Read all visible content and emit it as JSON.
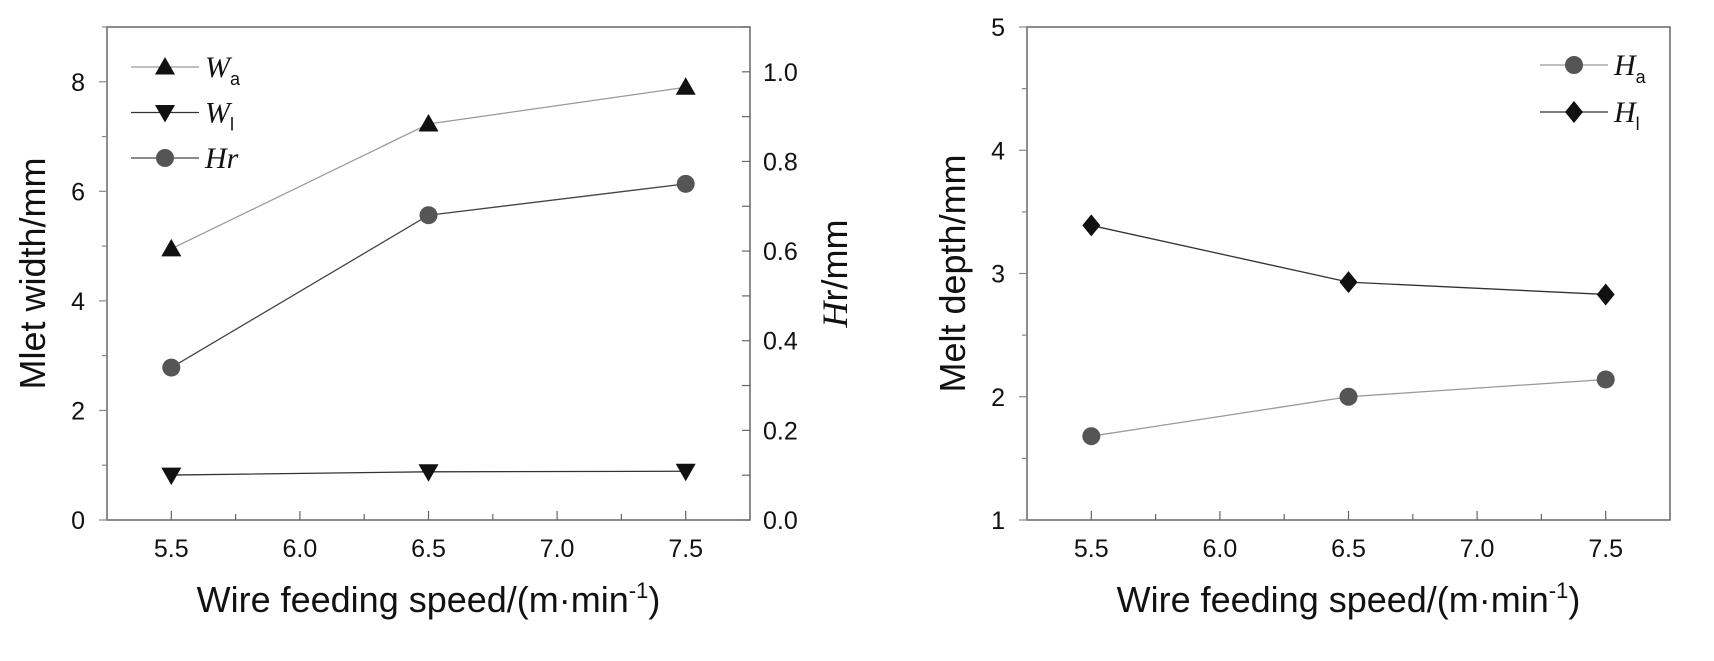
{
  "chart_data": [
    {
      "type": "line",
      "title": "",
      "xlabel": "Wire feeding speed/(m·min",
      "xlabel_sup": "-1",
      "xlabel_end": ")",
      "ylabel": "Mlet width/mm",
      "y2label_italic": "H",
      "y2label_rest": "r/mm",
      "x": [
        5.5,
        6.5,
        7.5
      ],
      "xlim": [
        5.25,
        7.75
      ],
      "ylim": [
        0,
        9
      ],
      "y2lim": [
        0,
        1.1
      ],
      "xticks": [
        "5.5",
        "6.0",
        "6.5",
        "7.0",
        "7.5"
      ],
      "yticks": [
        "0",
        "2",
        "4",
        "6",
        "8"
      ],
      "y2ticks": [
        "0.0",
        "0.2",
        "0.4",
        "0.6",
        "0.8",
        "1.0"
      ],
      "legend_position": "top-left",
      "series": [
        {
          "name": "W",
          "sub": "a",
          "marker": "triangle-up",
          "axis": "left",
          "color": "#111111",
          "line": "#999999",
          "values": [
            4.95,
            7.23,
            7.9
          ]
        },
        {
          "name": "W",
          "sub": "l",
          "marker": "triangle-down",
          "axis": "left",
          "color": "#111111",
          "line": "#333333",
          "values": [
            0.82,
            0.88,
            0.89
          ]
        },
        {
          "name": "Hr",
          "sub": "",
          "marker": "circle",
          "axis": "right",
          "color": "#555555",
          "line": "#444444",
          "values": [
            0.34,
            0.68,
            0.75
          ]
        }
      ]
    },
    {
      "type": "line",
      "title": "",
      "xlabel": "Wire feeding speed/(m·min",
      "xlabel_sup": "-1",
      "xlabel_end": ")",
      "ylabel": "Melt depth/mm",
      "x": [
        5.5,
        6.5,
        7.5
      ],
      "xlim": [
        5.25,
        7.75
      ],
      "ylim": [
        1,
        5
      ],
      "xticks": [
        "5.5",
        "6.0",
        "6.5",
        "7.0",
        "7.5"
      ],
      "yticks": [
        "1",
        "2",
        "3",
        "4",
        "5"
      ],
      "legend_position": "top-right",
      "series": [
        {
          "name": "H",
          "sub": "a",
          "marker": "circle",
          "axis": "left",
          "color": "#555555",
          "line": "#999999",
          "values": [
            1.68,
            2.0,
            2.14
          ]
        },
        {
          "name": "H",
          "sub": "l",
          "marker": "diamond",
          "axis": "left",
          "color": "#111111",
          "line": "#333333",
          "values": [
            3.39,
            2.93,
            2.83
          ]
        }
      ]
    }
  ]
}
